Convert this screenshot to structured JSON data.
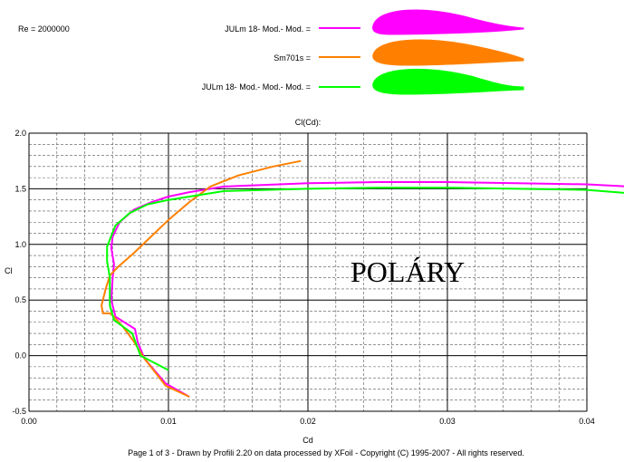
{
  "header": {
    "reynolds": "Re = 2000000",
    "legend": [
      {
        "label": "JULm 18- Mod.- Mod. =",
        "color": "#ff00ff"
      },
      {
        "label": "Sm701s =",
        "color": "#ff8000"
      },
      {
        "label": "JULm 18- Mod.- Mod.- Mod. =",
        "color": "#00ff00"
      }
    ]
  },
  "footer": "Page 1 of 3   -   Drawn by Profili 2.20 on data processed by  XFoil - Copyright (C) 1995-2007 - All rights reserved.",
  "annotation": "POLÁRY",
  "chart_data": {
    "type": "line",
    "title": "Cl(Cd):",
    "xlabel": "Cd",
    "ylabel": "Cl",
    "xlim": [
      0,
      0.04
    ],
    "ylim": [
      -0.5,
      2.0
    ],
    "xticks": [
      "0.00",
      "0.01",
      "0.02",
      "0.03",
      "0.04"
    ],
    "yticks": [
      "-0.5",
      "0.0",
      "0.5",
      "1.0",
      "1.5",
      "2.0"
    ],
    "grid": true,
    "series": [
      {
        "name": "JULm 18- Mod.- Mod.",
        "color": "#ff00ff",
        "x": [
          0.0115,
          0.0098,
          0.0083,
          0.0078,
          0.0076,
          0.0062,
          0.0059,
          0.006,
          0.0061,
          0.0059,
          0.006,
          0.0065,
          0.0075,
          0.0088,
          0.01,
          0.0115,
          0.014,
          0.02,
          0.025,
          0.03,
          0.035,
          0.04,
          0.043
        ],
        "y": [
          -0.37,
          -0.25,
          -0.03,
          0.12,
          0.24,
          0.35,
          0.5,
          0.7,
          0.82,
          0.97,
          1.07,
          1.2,
          1.31,
          1.38,
          1.43,
          1.47,
          1.52,
          1.55,
          1.56,
          1.56,
          1.55,
          1.54,
          1.52
        ]
      },
      {
        "name": "Sm701s",
        "color": "#ff8000",
        "x": [
          0.0115,
          0.0098,
          0.0083,
          0.0075,
          0.0068,
          0.0061,
          0.0058,
          0.0053,
          0.0052,
          0.0055,
          0.0058,
          0.0064,
          0.0075,
          0.0085,
          0.01,
          0.0115,
          0.013,
          0.015,
          0.0175,
          0.0195
        ],
        "y": [
          -0.37,
          -0.27,
          -0.03,
          0.13,
          0.25,
          0.35,
          0.38,
          0.38,
          0.45,
          0.6,
          0.72,
          0.8,
          0.92,
          1.04,
          1.22,
          1.38,
          1.52,
          1.62,
          1.7,
          1.75
        ]
      },
      {
        "name": "JULm 18- Mod.- Mod.- Mod.",
        "color": "#00ff00",
        "x": [
          0.01,
          0.008,
          0.0077,
          0.0074,
          0.0061,
          0.0058,
          0.0058,
          0.0056,
          0.0056,
          0.0062,
          0.0072,
          0.0085,
          0.01,
          0.014,
          0.02,
          0.025,
          0.03,
          0.035,
          0.04,
          0.043
        ],
        "y": [
          -0.13,
          0.0,
          0.1,
          0.2,
          0.32,
          0.45,
          0.7,
          0.85,
          0.98,
          1.17,
          1.28,
          1.36,
          1.4,
          1.48,
          1.5,
          1.51,
          1.51,
          1.5,
          1.49,
          1.46
        ]
      }
    ]
  }
}
